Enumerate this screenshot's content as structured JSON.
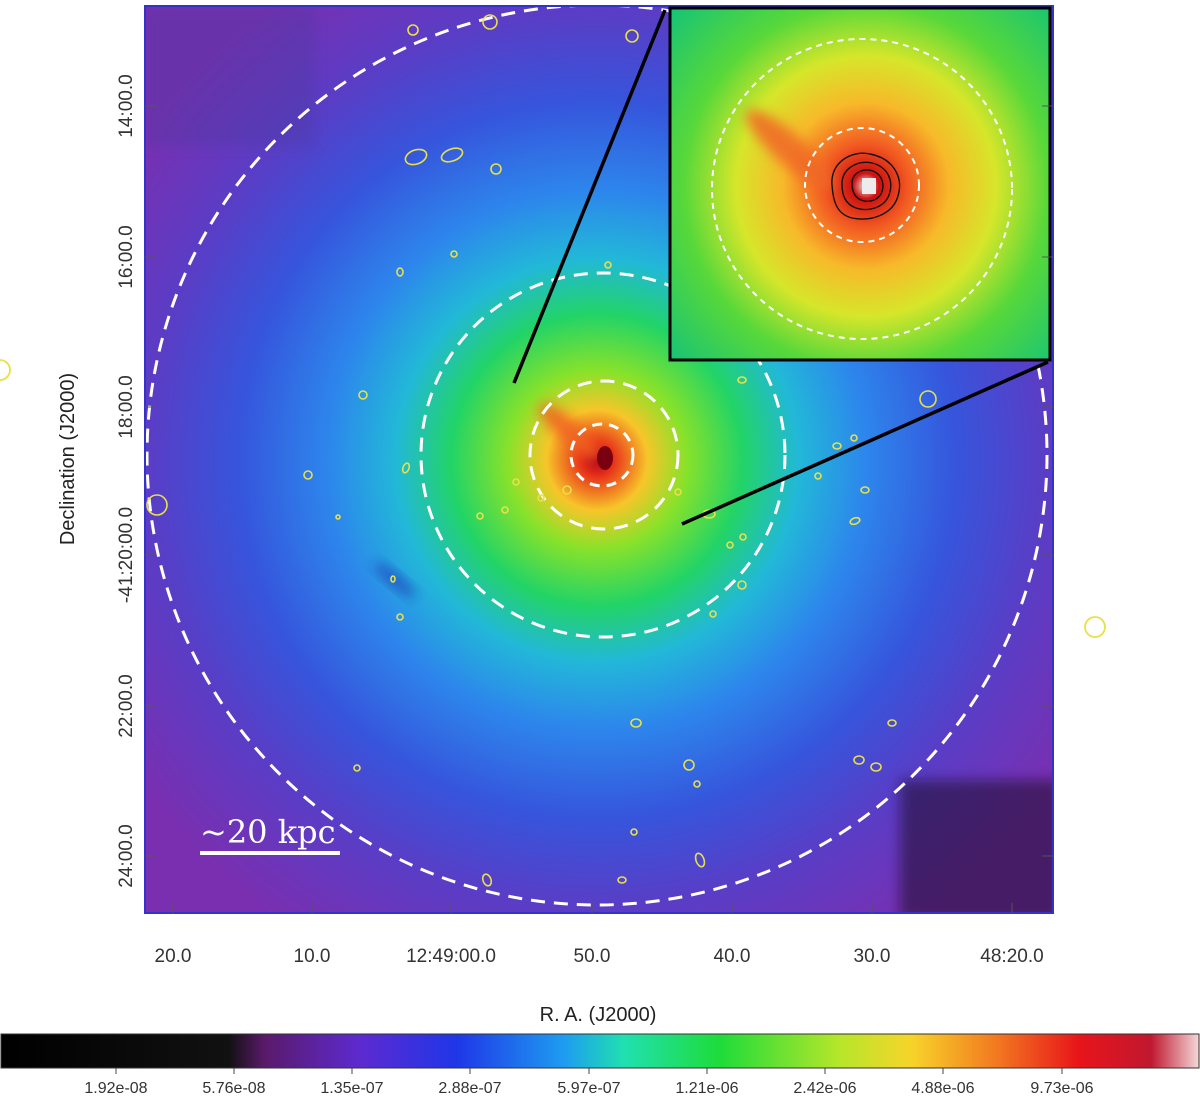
{
  "image": {
    "description_free": true,
    "xlabel": "R. A. (J2000)",
    "ylabel": "Declination (J2000)",
    "ra_ticks": [
      "20.0",
      "10.0",
      "12:49:00.0",
      "50.0",
      "40.0",
      "30.0",
      "48:20.0"
    ],
    "dec_ticks": [
      "14:00.0",
      "16:00.0",
      "18:00.0",
      "-41:20:00.0",
      "22:00.0",
      "24:00.0"
    ],
    "scale_bar_label": "~20 kpc",
    "colorbar_ticks": [
      "1.92e-08",
      "5.76e-08",
      "1.35e-07",
      "2.88e-07",
      "5.97e-07",
      "1.21e-06",
      "2.42e-06",
      "4.88e-06",
      "9.73e-06"
    ]
  },
  "colors": {
    "frame": "#3333cc",
    "ring": "#ffffff",
    "source_marker": "#e8e04a",
    "contour": "#111111"
  }
}
